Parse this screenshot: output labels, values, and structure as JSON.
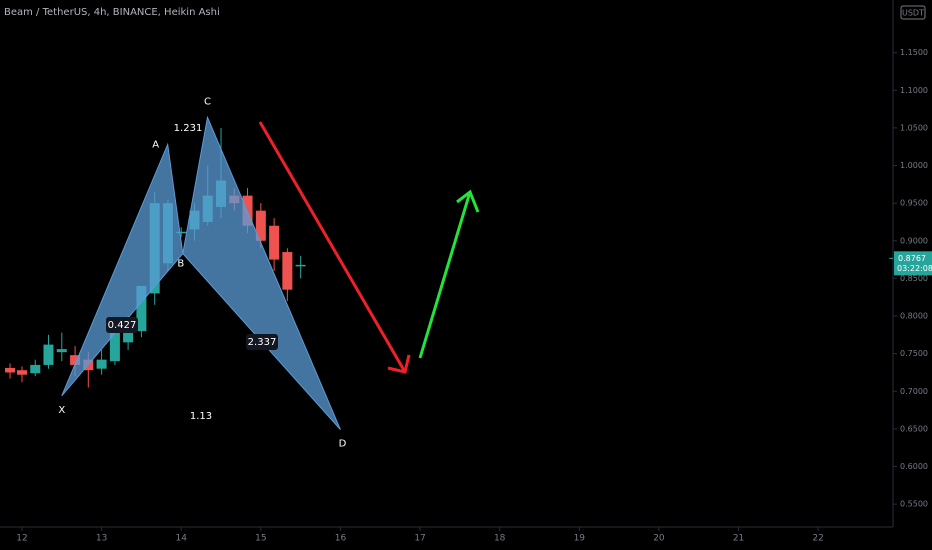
{
  "chart_data": {
    "type": "candlestick",
    "title": "Beam / TetherUS, 4h, BINANCE, Heikin Ashi",
    "currency": "USDT",
    "up_color": "#26a69a",
    "down_color": "#ef5350",
    "xlim": [
      11.724,
      22.94
    ],
    "xticks": [
      12,
      13,
      14,
      15,
      16,
      17,
      18,
      19,
      20,
      21,
      22
    ],
    "ylim": [
      0.5196,
      1.22
    ],
    "yticks": [
      {
        "value": 0.55,
        "label": "0.5500"
      },
      {
        "value": 0.6,
        "label": "0.6000"
      },
      {
        "value": 0.65,
        "label": "0.6500"
      },
      {
        "value": 0.7,
        "label": "0.7000"
      },
      {
        "value": 0.75,
        "label": "0.7500"
      },
      {
        "value": 0.8,
        "label": "0.8000"
      },
      {
        "value": 0.85,
        "label": "0.8500"
      },
      {
        "value": 0.9,
        "label": "0.9000"
      },
      {
        "value": 0.95,
        "label": "0.9500"
      },
      {
        "value": 1.0,
        "label": "1.0000"
      },
      {
        "value": 1.05,
        "label": "1.0500"
      },
      {
        "value": 1.1,
        "label": "1.1000"
      },
      {
        "value": 1.15,
        "label": "1.1500"
      }
    ],
    "x": [
      11.85,
      12.0,
      12.167,
      12.333,
      12.5,
      12.667,
      12.833,
      13.0,
      13.167,
      13.333,
      13.5,
      13.667,
      13.833,
      14.0,
      14.167,
      14.333,
      14.5,
      14.667,
      14.833,
      15.0,
      15.167,
      15.333,
      15.5
    ],
    "open": [
      0.731,
      0.728,
      0.724,
      0.735,
      0.752,
      0.748,
      0.742,
      0.73,
      0.74,
      0.765,
      0.78,
      0.83,
      0.87,
      0.91,
      0.915,
      0.925,
      0.945,
      0.96,
      0.96,
      0.94,
      0.92,
      0.885,
      0.867
    ],
    "high": [
      0.737,
      0.733,
      0.742,
      0.775,
      0.778,
      0.76,
      0.752,
      0.755,
      0.785,
      0.8,
      0.84,
      0.965,
      0.955,
      0.918,
      0.95,
      1.0,
      1.05,
      0.97,
      0.97,
      0.95,
      0.93,
      0.89,
      0.88
    ],
    "low": [
      0.717,
      0.712,
      0.72,
      0.73,
      0.74,
      0.72,
      0.705,
      0.722,
      0.735,
      0.755,
      0.772,
      0.815,
      0.86,
      0.905,
      0.9,
      0.92,
      0.93,
      0.94,
      0.91,
      0.89,
      0.86,
      0.82,
      0.85
    ],
    "close": [
      0.725,
      0.722,
      0.735,
      0.762,
      0.756,
      0.735,
      0.728,
      0.742,
      0.78,
      0.79,
      0.84,
      0.95,
      0.95,
      0.912,
      0.94,
      0.96,
      0.98,
      0.95,
      0.92,
      0.9,
      0.875,
      0.835,
      0.868
    ],
    "pattern": {
      "points": [
        "X",
        "A",
        "B",
        "C",
        "D"
      ],
      "x": [
        12.5,
        13.83,
        14.02,
        14.33,
        16.0
      ],
      "y": [
        0.694,
        1.028,
        0.883,
        1.064,
        0.649
      ],
      "color": "#5b9bd5",
      "ratio_labels": [
        "0.427",
        "1.231",
        "2.337",
        "1.13"
      ]
    },
    "last_price": 0.8767,
    "countdown": "03:22:08"
  }
}
